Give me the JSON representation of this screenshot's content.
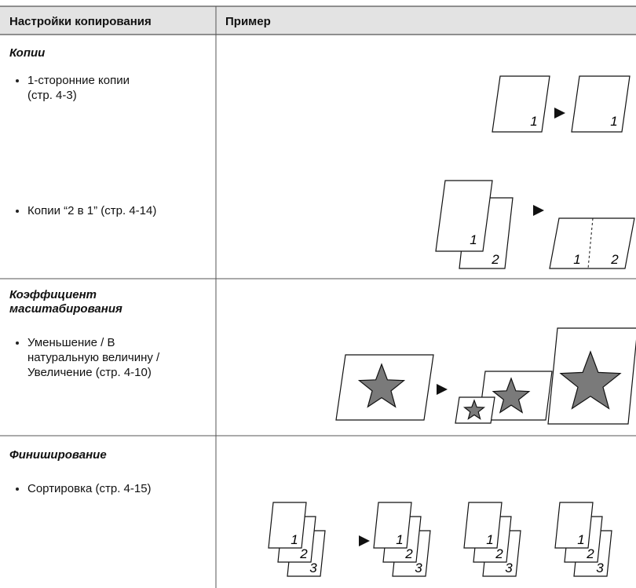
{
  "header": {
    "col1": "Настройки копирования",
    "col2": "Пример"
  },
  "rows": [
    {
      "title_lines": [
        "Копии"
      ],
      "items": [
        {
          "lines": [
            "1-сторонние копии",
            "(стр. 4-3)"
          ],
          "figure_labels": [
            "1",
            "1"
          ]
        },
        {
          "lines": [
            "Копии “2 в 1” (стр. 4-14)"
          ],
          "figure_labels": [
            "1",
            "2",
            "1",
            "2"
          ]
        }
      ]
    },
    {
      "title_lines": [
        "Коэффициент",
        "масштабирования"
      ],
      "items": [
        {
          "lines": [
            "Уменьшение / В",
            "натуральную величину /",
            "Увеличение (стр. 4-10)"
          ]
        }
      ]
    },
    {
      "title_lines": [
        "Финиширование"
      ],
      "items": [
        {
          "lines": [
            "Сортировка (стр. 4-15)"
          ],
          "figure_labels": [
            "1",
            "2",
            "3",
            "1",
            "2",
            "3",
            "1",
            "2",
            "3",
            "1",
            "2",
            "3"
          ]
        }
      ]
    }
  ]
}
